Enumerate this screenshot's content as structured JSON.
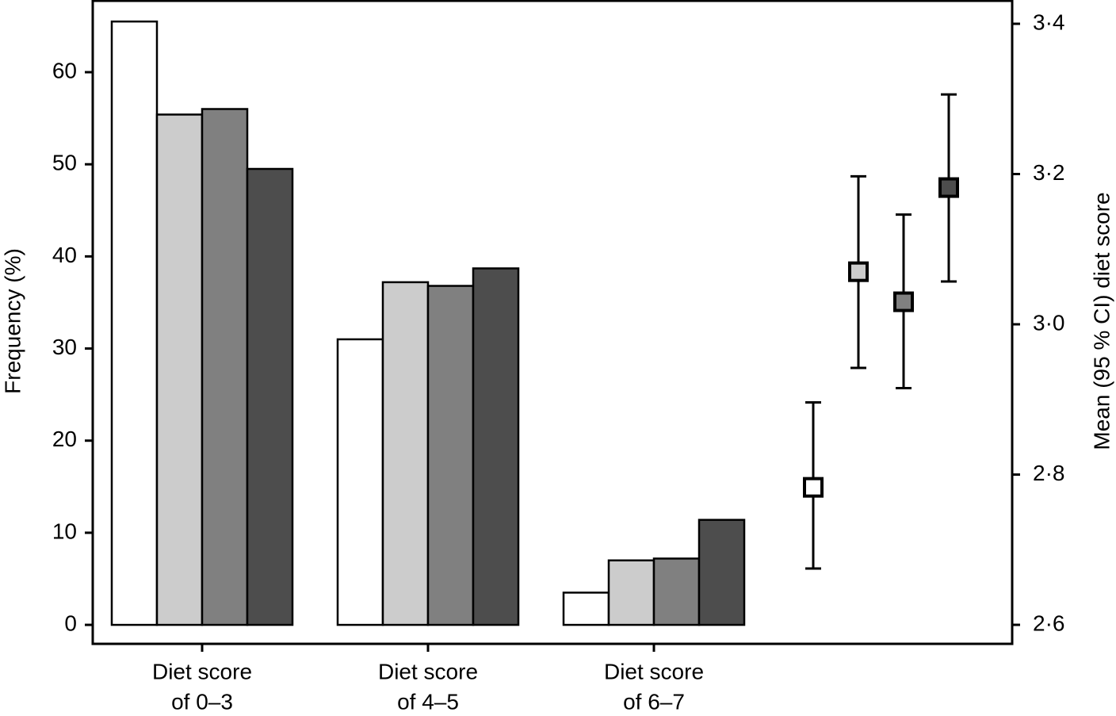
{
  "chart_data": {
    "type": "bar",
    "y_label": "Frequency (%)",
    "y2_label": "Mean (95 % CI) diet score",
    "categories": [
      [
        "Diet score",
        "of 0–3"
      ],
      [
        "Diet score",
        "of 4–5"
      ],
      [
        "Diet score",
        "of 6–7"
      ]
    ],
    "series": [
      {
        "color": "#ffffff",
        "values": [
          65.5,
          31.0,
          3.5
        ],
        "mean": 2.783,
        "ci_lower": 2.675,
        "ci_upper": 2.896
      },
      {
        "color": "#cccccc",
        "values": [
          55.4,
          37.2,
          7.0
        ],
        "mean": 3.07,
        "ci_lower": 2.942,
        "ci_upper": 3.197
      },
      {
        "color": "#808080",
        "values": [
          56.0,
          36.8,
          7.2
        ],
        "mean": 3.03,
        "ci_lower": 2.915,
        "ci_upper": 3.146
      },
      {
        "color": "#4d4d4d",
        "values": [
          49.5,
          38.7,
          11.4
        ],
        "mean": 3.182,
        "ci_lower": 3.057,
        "ci_upper": 3.306
      }
    ],
    "ylim": [
      -2.06,
      67.75
    ],
    "yticks": [
      0,
      10,
      20,
      30,
      40,
      50,
      60
    ],
    "y2lim": [
      2.5747,
      3.4306
    ],
    "y2ticks": [
      {
        "value": 2.6,
        "label": "2·6"
      },
      {
        "value": 2.8,
        "label": "2·8"
      },
      {
        "value": 3.0,
        "label": "3·0"
      },
      {
        "value": 3.2,
        "label": "3·2"
      },
      {
        "value": 3.4,
        "label": "3·4"
      }
    ]
  }
}
